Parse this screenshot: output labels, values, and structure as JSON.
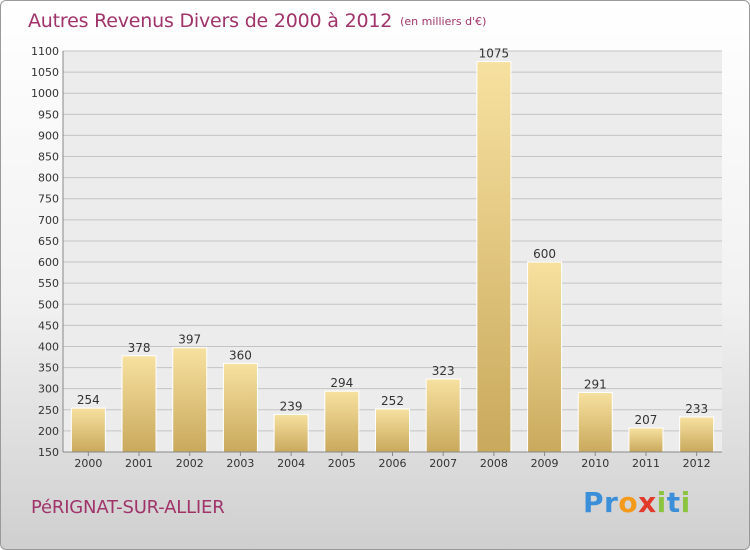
{
  "chart_data": {
    "type": "bar",
    "title": "Autres Revenus Divers de 2000 à 2012",
    "subtitle": "(en milliers d'€)",
    "categories": [
      "2000",
      "2001",
      "2002",
      "2003",
      "2004",
      "2005",
      "2006",
      "2007",
      "2008",
      "2009",
      "2010",
      "2011",
      "2012"
    ],
    "values": [
      254,
      378,
      397,
      360,
      239,
      294,
      252,
      323,
      1075,
      600,
      291,
      207,
      233
    ],
    "ylim": [
      150,
      1100
    ],
    "yticks": [
      150,
      200,
      250,
      300,
      350,
      400,
      450,
      500,
      550,
      600,
      650,
      700,
      750,
      800,
      850,
      900,
      950,
      1000,
      1050,
      1100
    ],
    "grid": true,
    "bar_color": "#e9cf87",
    "text_color": "#a0336a"
  },
  "footer": {
    "commune": "PéRIGNAT-SUR-ALLIER",
    "logo_letters": [
      {
        "char": "P",
        "color": "#3a8fd8"
      },
      {
        "char": "r",
        "color": "#3a8fd8"
      },
      {
        "char": "o",
        "color": "#f39a1c"
      },
      {
        "char": "x",
        "color": "#e23a2a"
      },
      {
        "char": "i",
        "color": "#8cc43f"
      },
      {
        "char": "t",
        "color": "#3a8fd8"
      },
      {
        "char": "i",
        "color": "#8cc43f"
      }
    ]
  }
}
